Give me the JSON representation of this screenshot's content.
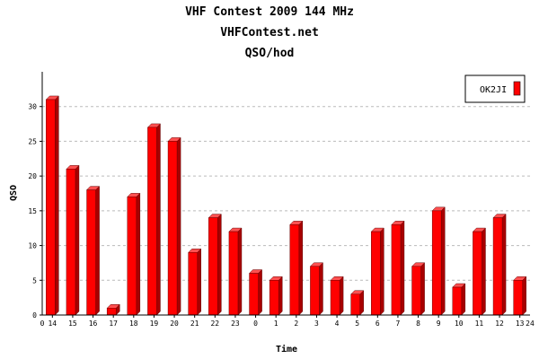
{
  "chart_data": {
    "type": "bar",
    "title": "VHF Contest 2009 144 MHz",
    "subtitle": "VHFContest.net",
    "subtitle2": "QSO/hod",
    "xlabel": "Time",
    "ylabel": "QSO",
    "ylim": [
      0,
      35
    ],
    "yticks": [
      0,
      5,
      10,
      15,
      20,
      25,
      30
    ],
    "x_edge_labels": [
      "0",
      "24"
    ],
    "categories": [
      "14",
      "15",
      "16",
      "17",
      "18",
      "19",
      "20",
      "21",
      "22",
      "23",
      "0",
      "1",
      "2",
      "3",
      "4",
      "5",
      "6",
      "7",
      "8",
      "9",
      "10",
      "11",
      "12",
      "13"
    ],
    "series": [
      {
        "name": "OK2JI",
        "color": "#ff0000",
        "values": [
          31,
          21,
          18,
          1,
          17,
          27,
          25,
          9,
          14,
          12,
          6,
          5,
          13,
          7,
          5,
          3,
          12,
          13,
          7,
          15,
          4,
          12,
          14,
          5
        ]
      }
    ],
    "grid": true,
    "legend": "top-right"
  }
}
